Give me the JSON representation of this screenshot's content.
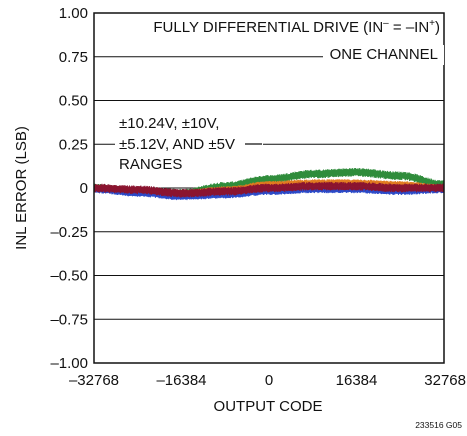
{
  "chart_data": {
    "type": "scatter",
    "title": "",
    "xlabel": "OUTPUT CODE",
    "ylabel": "INL ERROR (LSB)",
    "xlim": [
      -32768,
      32768
    ],
    "ylim": [
      -1.0,
      1.0
    ],
    "x_ticks": [
      -32768,
      -16384,
      0,
      16384,
      32768
    ],
    "x_tick_labels": [
      "–32768",
      "–16384",
      "0",
      "16384",
      "32768"
    ],
    "y_ticks": [
      1.0,
      0.75,
      0.5,
      0.25,
      0,
      -0.25,
      -0.5,
      -0.75,
      -1.0
    ],
    "y_tick_labels": [
      "1.00",
      "0.75",
      "0.50",
      "0.25",
      "0",
      "–0.25",
      "–0.50",
      "–0.75",
      "–1.00"
    ],
    "grid": true,
    "annotations": {
      "drive_prefix": "FULLY DIFFERENTIAL DRIVE (IN",
      "drive_sup1": "–",
      "drive_mid": " = –IN",
      "drive_sup2": "+",
      "drive_suffix": ")",
      "channel": "ONE CHANNEL",
      "ranges_line1": "±10.24V, ±10V,",
      "ranges_line2": "±5.12V, AND ±5V",
      "ranges_line3": "RANGES"
    },
    "footnote": "233516 G05",
    "series": [
      {
        "color": "#2e8b3a",
        "x": [
          -32768,
          -24576,
          -16384,
          -8192,
          0,
          8192,
          16384,
          24576,
          32768
        ],
        "y": [
          0.0,
          -0.02,
          -0.03,
          0.01,
          0.05,
          0.08,
          0.09,
          0.07,
          0.02
        ],
        "band": 0.025
      },
      {
        "color": "#e07a1f",
        "x": [
          -32768,
          -24576,
          -16384,
          -8192,
          0,
          8192,
          16384,
          24576,
          32768
        ],
        "y": [
          0.0,
          -0.02,
          -0.03,
          -0.01,
          0.02,
          0.03,
          0.03,
          0.02,
          0.0
        ],
        "band": 0.02
      },
      {
        "color": "#2a49c8",
        "x": [
          -32768,
          -24576,
          -16384,
          -8192,
          0,
          8192,
          16384,
          24576,
          32768
        ],
        "y": [
          -0.01,
          -0.03,
          -0.05,
          -0.04,
          -0.02,
          -0.01,
          -0.01,
          -0.02,
          -0.01
        ],
        "band": 0.02
      },
      {
        "color": "#8b1430",
        "x": [
          -32768,
          -24576,
          -16384,
          -8192,
          0,
          8192,
          16384,
          24576,
          32768
        ],
        "y": [
          0.0,
          -0.01,
          -0.03,
          -0.02,
          0.0,
          0.01,
          0.01,
          0.0,
          0.0
        ],
        "band": 0.025
      }
    ]
  }
}
